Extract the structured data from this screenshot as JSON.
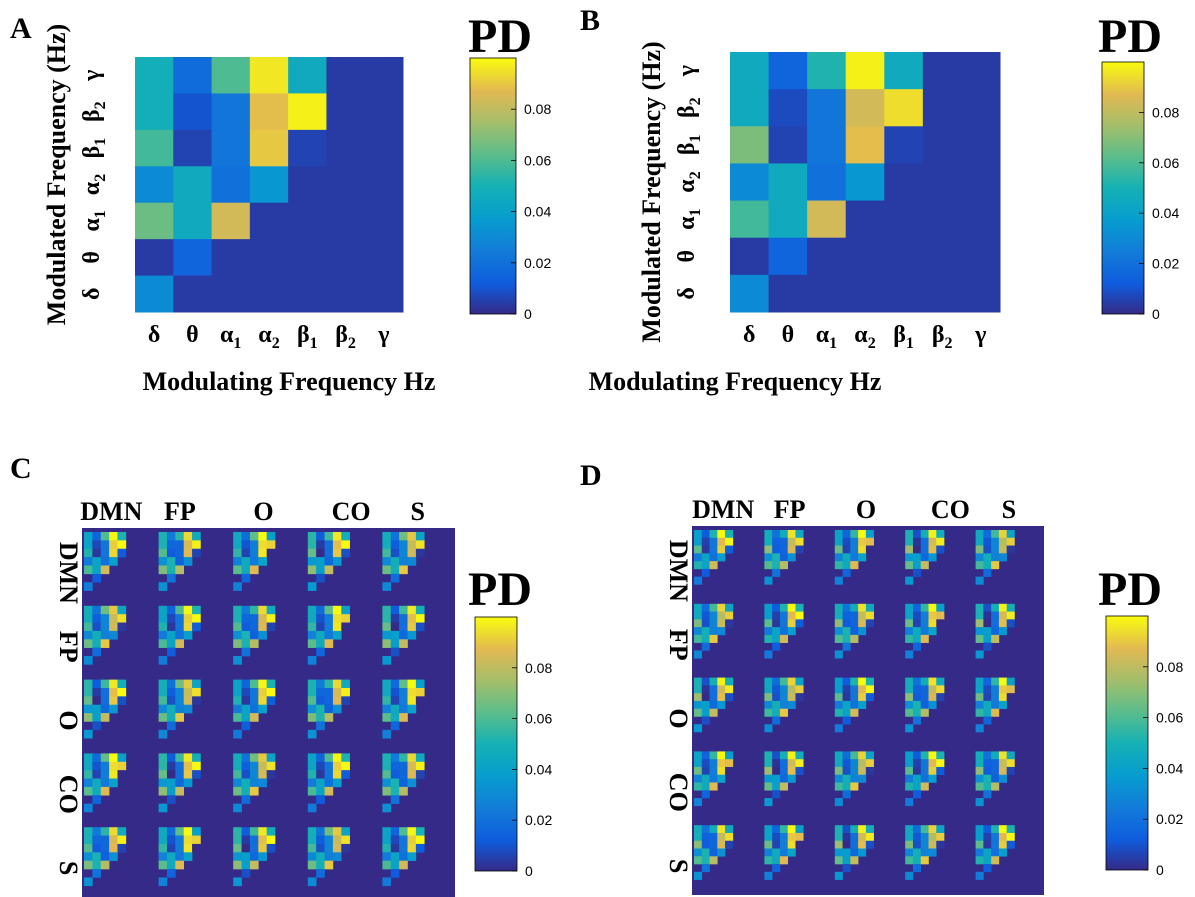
{
  "colors": {
    "background": "#ffffff",
    "text": "#000000",
    "colormap": "parula",
    "grid_fill": "#352a87"
  },
  "chart_data": [
    {
      "panel": "A",
      "type": "heatmap",
      "xlabel": "Modulating Frequency Hz",
      "ylabel": "Modulated Frequency (Hz)",
      "x_ticks": [
        "δ",
        "θ",
        "α1",
        "α2",
        "β1",
        "β2",
        "γ"
      ],
      "y_ticks_bottom_to_top": [
        "δ",
        "θ",
        "α1",
        "α2",
        "β1",
        "β2",
        "γ"
      ],
      "colorbar_title": "PD",
      "colorbar_ticks": [
        "0",
        "0.02",
        "0.04",
        "0.06",
        "0.08"
      ],
      "clim": [
        0,
        0.1
      ],
      "values_top_to_bottom": [
        [
          0.048,
          0.018,
          0.06,
          0.096,
          0.045,
          0.004,
          0.004
        ],
        [
          0.048,
          0.01,
          0.022,
          0.088,
          0.098,
          0.004,
          0.004
        ],
        [
          0.058,
          0.006,
          0.022,
          0.09,
          0.006,
          0.004,
          0.004
        ],
        [
          0.03,
          0.045,
          0.02,
          0.035,
          0.004,
          0.004,
          0.004
        ],
        [
          0.065,
          0.045,
          0.084,
          0.004,
          0.004,
          0.004,
          0.004
        ],
        [
          0.004,
          0.015,
          0.004,
          0.004,
          0.004,
          0.004,
          0.004
        ],
        [
          0.03,
          0.004,
          0.004,
          0.004,
          0.004,
          0.004,
          0.004
        ]
      ]
    },
    {
      "panel": "B",
      "type": "heatmap",
      "xlabel": "Modulating Frequency Hz",
      "ylabel": "Modulated Frequency (Hz)",
      "x_ticks": [
        "δ",
        "θ",
        "α1",
        "α2",
        "β1",
        "β2",
        "γ"
      ],
      "y_ticks_bottom_to_top": [
        "δ",
        "θ",
        "α1",
        "α2",
        "β1",
        "β2",
        "γ"
      ],
      "colorbar_title": "PD",
      "colorbar_ticks": [
        "0",
        "0.02",
        "0.04",
        "0.06",
        "0.08"
      ],
      "clim": [
        0,
        0.1
      ],
      "values_top_to_bottom": [
        [
          0.045,
          0.015,
          0.052,
          0.098,
          0.045,
          0.004,
          0.004
        ],
        [
          0.045,
          0.008,
          0.022,
          0.084,
          0.094,
          0.004,
          0.004
        ],
        [
          0.068,
          0.006,
          0.022,
          0.088,
          0.006,
          0.004,
          0.004
        ],
        [
          0.03,
          0.045,
          0.02,
          0.035,
          0.004,
          0.004,
          0.004
        ],
        [
          0.058,
          0.045,
          0.084,
          0.004,
          0.004,
          0.004,
          0.004
        ],
        [
          0.004,
          0.015,
          0.004,
          0.004,
          0.004,
          0.004,
          0.004
        ],
        [
          0.03,
          0.004,
          0.004,
          0.004,
          0.004,
          0.004,
          0.004
        ]
      ]
    },
    {
      "panel": "C",
      "type": "heatmap",
      "description_grid": "5x5 tiles of 7x7 PD matrices",
      "networks": [
        "DMN",
        "FP",
        "O",
        "CO",
        "S"
      ],
      "colorbar_title": "PD",
      "colorbar_ticks": [
        "0",
        "0.02",
        "0.04",
        "0.06",
        "0.08"
      ],
      "clim": [
        0,
        0.1
      ]
    },
    {
      "panel": "D",
      "type": "heatmap",
      "description_grid": "5x5 tiles of 7x7 PD matrices",
      "networks": [
        "DMN",
        "FP",
        "O",
        "CO",
        "S"
      ],
      "colorbar_title": "PD",
      "colorbar_ticks": [
        "0",
        "0.02",
        "0.04",
        "0.06",
        "0.08"
      ],
      "clim": [
        0,
        0.1
      ]
    }
  ],
  "panel_labels": [
    "A",
    "B",
    "C",
    "D"
  ]
}
